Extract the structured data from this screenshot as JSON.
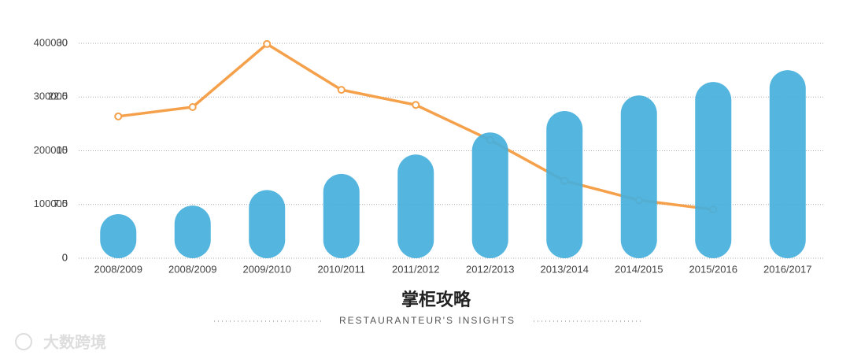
{
  "chart_data": {
    "type": "bar",
    "categories": [
      "2008/2009",
      "2008/2009",
      "2009/2010",
      "2010/2011",
      "2011/2012",
      "2012/2013",
      "2013/2014",
      "2014/2015",
      "2015/2016",
      "2016/2017"
    ],
    "series": [
      {
        "type": "bar",
        "color": "#45afdc",
        "values": [
          82000,
          98000,
          127000,
          157000,
          193000,
          234000,
          274000,
          303000,
          328000,
          350000
        ]
      },
      {
        "type": "line",
        "color": "#f5a04a",
        "axis": "y2",
        "values": [
          19.8,
          21.1,
          29.9,
          23.5,
          21.4,
          16.5,
          10.8,
          8.1,
          6.8,
          null
        ]
      }
    ],
    "ylim": [
      0,
      400000
    ],
    "yticks": [
      0,
      100000,
      200000,
      300000,
      400000
    ],
    "y2lim": [
      0,
      30
    ],
    "y2ticks": [
      0,
      7.5,
      15,
      22.5,
      30
    ],
    "grid": true
  },
  "footer": {
    "title": "掌柜攻略",
    "subtitle": "RESTAURANTEUR'S   INSIGHTS",
    "watermark": "大数跨境"
  }
}
